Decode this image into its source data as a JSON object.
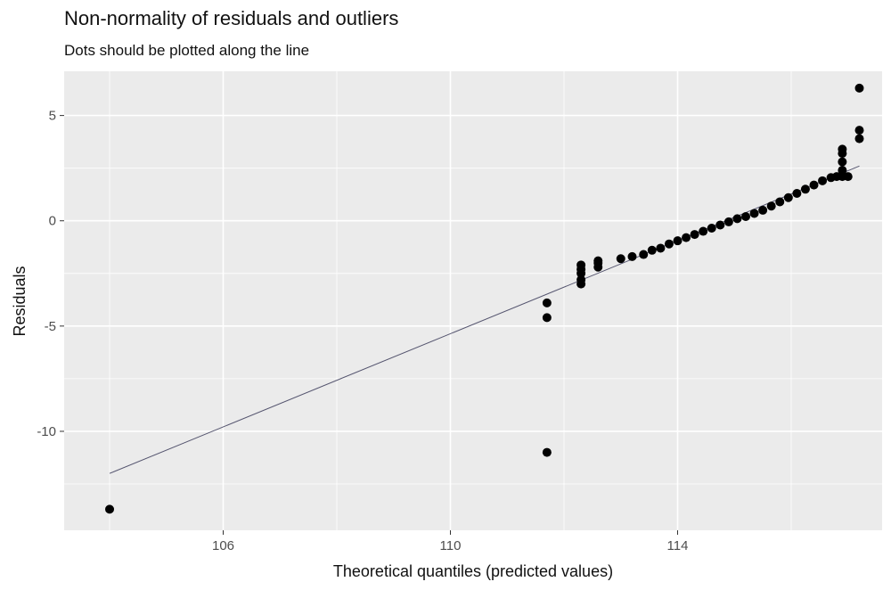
{
  "chart_data": {
    "type": "scatter",
    "title": "Non-normality of residuals and outliers",
    "subtitle": "Dots should be plotted along the line",
    "xlabel": "Theoretical quantiles (predicted values)",
    "ylabel": "Residuals",
    "xlim": [
      103.2,
      117.6
    ],
    "ylim": [
      -14.7,
      7.1
    ],
    "x_ticks": [
      106,
      110,
      114
    ],
    "x_tick_labels": [
      "106",
      "110",
      "114"
    ],
    "y_ticks": [
      5,
      0,
      -5,
      -10
    ],
    "y_tick_labels": [
      "5",
      "0",
      "-5",
      "-10"
    ],
    "grid": true,
    "background": "#EBEBEB",
    "grid_color": "#FFFFFF",
    "point_color": "#000000",
    "line_color": "#55556F",
    "reference_line": {
      "x": [
        104.0,
        117.2
      ],
      "y": [
        -12.0,
        2.6
      ]
    },
    "points": [
      {
        "x": 104.0,
        "y": -13.7
      },
      {
        "x": 111.7,
        "y": -11.0
      },
      {
        "x": 111.7,
        "y": -4.6
      },
      {
        "x": 111.7,
        "y": -3.9
      },
      {
        "x": 112.3,
        "y": -3.0
      },
      {
        "x": 112.3,
        "y": -2.8
      },
      {
        "x": 112.3,
        "y": -2.5
      },
      {
        "x": 112.3,
        "y": -2.3
      },
      {
        "x": 112.3,
        "y": -2.1
      },
      {
        "x": 112.6,
        "y": -2.2
      },
      {
        "x": 112.6,
        "y": -2.0
      },
      {
        "x": 112.6,
        "y": -1.9
      },
      {
        "x": 113.0,
        "y": -1.8
      },
      {
        "x": 113.2,
        "y": -1.7
      },
      {
        "x": 113.4,
        "y": -1.6
      },
      {
        "x": 113.55,
        "y": -1.4
      },
      {
        "x": 113.7,
        "y": -1.3
      },
      {
        "x": 113.85,
        "y": -1.1
      },
      {
        "x": 114.0,
        "y": -0.95
      },
      {
        "x": 114.15,
        "y": -0.8
      },
      {
        "x": 114.3,
        "y": -0.65
      },
      {
        "x": 114.45,
        "y": -0.5
      },
      {
        "x": 114.6,
        "y": -0.35
      },
      {
        "x": 114.75,
        "y": -0.2
      },
      {
        "x": 114.9,
        "y": -0.05
      },
      {
        "x": 115.05,
        "y": 0.1
      },
      {
        "x": 115.2,
        "y": 0.2
      },
      {
        "x": 115.35,
        "y": 0.35
      },
      {
        "x": 115.5,
        "y": 0.5
      },
      {
        "x": 115.65,
        "y": 0.7
      },
      {
        "x": 115.8,
        "y": 0.9
      },
      {
        "x": 115.95,
        "y": 1.1
      },
      {
        "x": 116.1,
        "y": 1.3
      },
      {
        "x": 116.25,
        "y": 1.5
      },
      {
        "x": 116.4,
        "y": 1.7
      },
      {
        "x": 116.55,
        "y": 1.9
      },
      {
        "x": 116.7,
        "y": 2.05
      },
      {
        "x": 116.8,
        "y": 2.1
      },
      {
        "x": 116.9,
        "y": 2.1
      },
      {
        "x": 117.0,
        "y": 2.1
      },
      {
        "x": 116.9,
        "y": 2.4
      },
      {
        "x": 116.9,
        "y": 2.8
      },
      {
        "x": 116.9,
        "y": 3.2
      },
      {
        "x": 116.9,
        "y": 3.4
      },
      {
        "x": 117.2,
        "y": 3.9
      },
      {
        "x": 117.2,
        "y": 4.3
      },
      {
        "x": 117.2,
        "y": 6.3
      }
    ]
  }
}
